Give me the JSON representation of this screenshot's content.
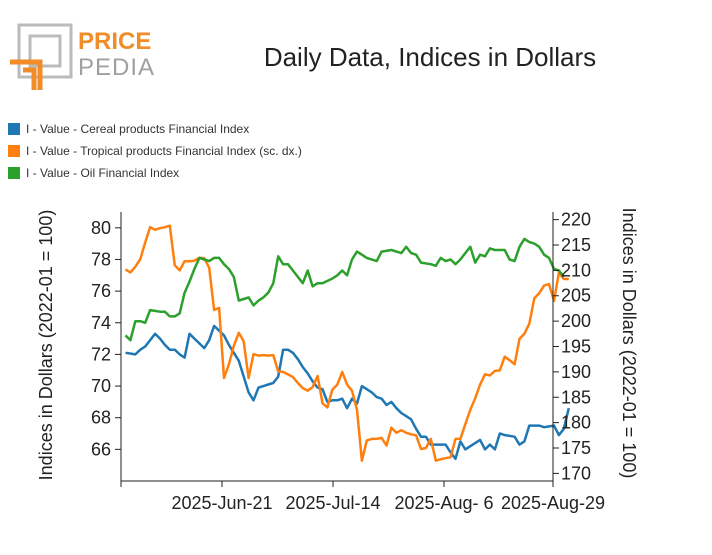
{
  "logo": {
    "line1": "PRICE",
    "line2": "PEDIA"
  },
  "legend": [
    {
      "label": "I - Value - Cereal products Financial Index",
      "color": "#1f77b4"
    },
    {
      "label": "I - Value - Tropical products Financial Index (sc. dx.)",
      "color": "#ff7f0e"
    },
    {
      "label": "I - Value - Oil Financial Index",
      "color": "#2ca02c"
    }
  ],
  "chart_data": {
    "type": "line",
    "title": "Daily Data, Indices in Dollars",
    "ylabel": "Indices in Dollars (2022-01 = 100)",
    "ylabel_right": "Indices in Dollars (2022-01 = 100)",
    "x_ticks": [
      "2025-Jun-21",
      "2025-Jul-14",
      "2025-Aug- 6",
      "2025-Aug-29"
    ],
    "y_left": {
      "min": 64,
      "max": 81,
      "ticks": [
        66,
        68,
        70,
        72,
        74,
        76,
        78,
        80
      ]
    },
    "y_right": {
      "min": 168.5,
      "max": 221.5,
      "ticks": [
        170,
        175,
        180,
        185,
        190,
        195,
        200,
        205,
        210,
        215,
        220
      ]
    },
    "x_start_date": "2025-05-30",
    "series": [
      {
        "name": "I - Value - Cereal products Financial Index",
        "axis": "left",
        "color": "#1f77b4",
        "points": [
          [
            "2025-05-30",
            72.1
          ],
          [
            "2025-06-01",
            72.0
          ],
          [
            "2025-06-02",
            72.3
          ],
          [
            "2025-06-03",
            72.5
          ],
          [
            "2025-06-05",
            73.3
          ],
          [
            "2025-06-06",
            73.0
          ],
          [
            "2025-06-07",
            72.6
          ],
          [
            "2025-06-08",
            72.3
          ],
          [
            "2025-06-09",
            72.3
          ],
          [
            "2025-06-10",
            72.0
          ],
          [
            "2025-06-11",
            71.8
          ],
          [
            "2025-06-12",
            73.3
          ],
          [
            "2025-06-13",
            73.0
          ],
          [
            "2025-06-15",
            72.4
          ],
          [
            "2025-06-16",
            72.9
          ],
          [
            "2025-06-17",
            73.8
          ],
          [
            "2025-06-18",
            73.5
          ],
          [
            "2025-06-19",
            73.2
          ],
          [
            "2025-06-20",
            72.6
          ],
          [
            "2025-06-21",
            72.1
          ],
          [
            "2025-06-22",
            71.6
          ],
          [
            "2025-06-23",
            70.6
          ],
          [
            "2025-06-24",
            69.6
          ],
          [
            "2025-06-25",
            69.1
          ],
          [
            "2025-06-26",
            69.9
          ],
          [
            "2025-06-27",
            70.0
          ],
          [
            "2025-06-28",
            70.1
          ],
          [
            "2025-06-29",
            70.2
          ],
          [
            "2025-06-30",
            70.6
          ],
          [
            "2025-07-01",
            72.3
          ],
          [
            "2025-07-02",
            72.3
          ],
          [
            "2025-07-03",
            72.1
          ],
          [
            "2025-07-04",
            71.7
          ],
          [
            "2025-07-05",
            71.2
          ],
          [
            "2025-07-06",
            70.8
          ],
          [
            "2025-07-07",
            70.3
          ],
          [
            "2025-07-08",
            69.9
          ],
          [
            "2025-07-09",
            69.8
          ],
          [
            "2025-07-10",
            69.0
          ],
          [
            "2025-07-11",
            69.1
          ],
          [
            "2025-07-12",
            69.1
          ],
          [
            "2025-07-13",
            69.2
          ],
          [
            "2025-07-14",
            68.6
          ],
          [
            "2025-07-15",
            69.2
          ],
          [
            "2025-07-16",
            68.9
          ],
          [
            "2025-07-17",
            70.0
          ],
          [
            "2025-07-18",
            69.8
          ],
          [
            "2025-07-19",
            69.6
          ],
          [
            "2025-07-20",
            69.3
          ],
          [
            "2025-07-21",
            69.2
          ],
          [
            "2025-07-22",
            68.8
          ],
          [
            "2025-07-23",
            69.0
          ],
          [
            "2025-07-24",
            68.6
          ],
          [
            "2025-07-25",
            68.3
          ],
          [
            "2025-07-27",
            67.9
          ],
          [
            "2025-07-28",
            67.3
          ],
          [
            "2025-07-29",
            66.8
          ],
          [
            "2025-07-30",
            66.8
          ],
          [
            "2025-07-31",
            66.3
          ],
          [
            "2025-08-01",
            66.3
          ],
          [
            "2025-08-02",
            66.3
          ],
          [
            "2025-08-03",
            66.3
          ],
          [
            "2025-08-04",
            65.8
          ],
          [
            "2025-08-05",
            65.4
          ],
          [
            "2025-08-06",
            66.5
          ],
          [
            "2025-08-07",
            66.0
          ],
          [
            "2025-08-08",
            66.2
          ],
          [
            "2025-08-10",
            66.6
          ],
          [
            "2025-08-11",
            66.0
          ],
          [
            "2025-08-12",
            66.3
          ],
          [
            "2025-08-13",
            66.0
          ],
          [
            "2025-08-14",
            67.0
          ],
          [
            "2025-08-15",
            66.9
          ],
          [
            "2025-08-17",
            66.8
          ],
          [
            "2025-08-18",
            66.3
          ],
          [
            "2025-08-19",
            66.5
          ],
          [
            "2025-08-20",
            67.5
          ],
          [
            "2025-08-22",
            67.5
          ],
          [
            "2025-08-23",
            67.4
          ],
          [
            "2025-08-25",
            67.5
          ],
          [
            "2025-08-26",
            66.9
          ],
          [
            "2025-08-27",
            67.3
          ],
          [
            "2025-08-28",
            68.6
          ]
        ]
      },
      {
        "name": "I - Value - Tropical products Financial Index (sc. dx.)",
        "axis": "right",
        "color": "#ff7f0e",
        "points": [
          [
            "2025-05-30",
            210.2
          ],
          [
            "2025-05-31",
            209.6
          ],
          [
            "2025-06-01",
            210.7
          ],
          [
            "2025-06-02",
            212.2
          ],
          [
            "2025-06-03",
            215.5
          ],
          [
            "2025-06-04",
            218.5
          ],
          [
            "2025-06-05",
            218.0
          ],
          [
            "2025-06-06",
            218.3
          ],
          [
            "2025-06-07",
            218.5
          ],
          [
            "2025-06-08",
            218.8
          ],
          [
            "2025-06-09",
            211.0
          ],
          [
            "2025-06-10",
            210.0
          ],
          [
            "2025-06-11",
            211.8
          ],
          [
            "2025-06-12",
            211.8
          ],
          [
            "2025-06-13",
            211.9
          ],
          [
            "2025-06-14",
            212.5
          ],
          [
            "2025-06-15",
            212.4
          ],
          [
            "2025-06-16",
            210.5
          ],
          [
            "2025-06-17",
            202.2
          ],
          [
            "2025-06-18",
            202.6
          ],
          [
            "2025-06-19",
            188.8
          ],
          [
            "2025-06-20",
            191.5
          ],
          [
            "2025-06-21",
            195.1
          ],
          [
            "2025-06-22",
            197.7
          ],
          [
            "2025-06-23",
            196.0
          ],
          [
            "2025-06-24",
            188.8
          ],
          [
            "2025-06-25",
            193.5
          ],
          [
            "2025-06-26",
            193.2
          ],
          [
            "2025-06-27",
            193.3
          ],
          [
            "2025-06-28",
            193.2
          ],
          [
            "2025-06-29",
            193.3
          ],
          [
            "2025-06-30",
            190.1
          ],
          [
            "2025-07-01",
            190.0
          ],
          [
            "2025-07-02",
            189.5
          ],
          [
            "2025-07-03",
            189.0
          ],
          [
            "2025-07-04",
            187.8
          ],
          [
            "2025-07-05",
            186.8
          ],
          [
            "2025-07-06",
            186.3
          ],
          [
            "2025-07-07",
            187.0
          ],
          [
            "2025-07-08",
            189.2
          ],
          [
            "2025-07-09",
            183.8
          ],
          [
            "2025-07-10",
            183.0
          ],
          [
            "2025-07-11",
            186.5
          ],
          [
            "2025-07-12",
            187.5
          ],
          [
            "2025-07-13",
            190.0
          ],
          [
            "2025-07-14",
            187.5
          ],
          [
            "2025-07-15",
            186.3
          ],
          [
            "2025-07-16",
            182.5
          ],
          [
            "2025-07-17",
            172.5
          ],
          [
            "2025-07-18",
            176.5
          ],
          [
            "2025-07-19",
            176.8
          ],
          [
            "2025-07-20",
            176.8
          ],
          [
            "2025-07-21",
            177.0
          ],
          [
            "2025-07-22",
            175.5
          ],
          [
            "2025-07-23",
            179.0
          ],
          [
            "2025-07-24",
            178.0
          ],
          [
            "2025-07-25",
            178.5
          ],
          [
            "2025-07-26",
            178.0
          ],
          [
            "2025-07-27",
            177.7
          ],
          [
            "2025-07-28",
            177.5
          ],
          [
            "2025-07-29",
            174.8
          ],
          [
            "2025-07-30",
            175.0
          ],
          [
            "2025-07-31",
            176.8
          ],
          [
            "2025-08-01",
            172.5
          ],
          [
            "2025-08-02",
            172.8
          ],
          [
            "2025-08-03",
            173.0
          ],
          [
            "2025-08-04",
            173.2
          ],
          [
            "2025-08-05",
            176.8
          ],
          [
            "2025-08-06",
            176.8
          ],
          [
            "2025-08-07",
            179.7
          ],
          [
            "2025-08-08",
            182.5
          ],
          [
            "2025-08-09",
            184.8
          ],
          [
            "2025-08-10",
            187.5
          ],
          [
            "2025-08-11",
            189.5
          ],
          [
            "2025-08-12",
            189.3
          ],
          [
            "2025-08-13",
            190.2
          ],
          [
            "2025-08-14",
            190.3
          ],
          [
            "2025-08-15",
            193.0
          ],
          [
            "2025-08-16",
            192.3
          ],
          [
            "2025-08-17",
            191.5
          ],
          [
            "2025-08-18",
            196.5
          ],
          [
            "2025-08-19",
            197.5
          ],
          [
            "2025-08-20",
            199.5
          ],
          [
            "2025-08-21",
            204.5
          ],
          [
            "2025-08-22",
            205.5
          ],
          [
            "2025-08-23",
            207.0
          ],
          [
            "2025-08-24",
            207.3
          ],
          [
            "2025-08-25",
            204.0
          ],
          [
            "2025-08-26",
            209.5
          ],
          [
            "2025-08-27",
            208.3
          ],
          [
            "2025-08-28",
            208.3
          ]
        ]
      },
      {
        "name": "I - Value - Oil Financial Index",
        "axis": "left",
        "color": "#2ca02c",
        "points": [
          [
            "2025-05-30",
            73.2
          ],
          [
            "2025-05-31",
            72.9
          ],
          [
            "2025-06-01",
            74.1
          ],
          [
            "2025-06-02",
            74.1
          ],
          [
            "2025-06-03",
            74.0
          ],
          [
            "2025-06-04",
            74.8
          ],
          [
            "2025-06-06",
            74.7
          ],
          [
            "2025-06-07",
            74.7
          ],
          [
            "2025-06-08",
            74.4
          ],
          [
            "2025-06-09",
            74.4
          ],
          [
            "2025-06-10",
            74.6
          ],
          [
            "2025-06-11",
            75.9
          ],
          [
            "2025-06-12",
            76.6
          ],
          [
            "2025-06-13",
            77.4
          ],
          [
            "2025-06-14",
            78.1
          ],
          [
            "2025-06-15",
            78.0
          ],
          [
            "2025-06-16",
            77.9
          ],
          [
            "2025-06-17",
            78.1
          ],
          [
            "2025-06-18",
            78.1
          ],
          [
            "2025-06-19",
            77.7
          ],
          [
            "2025-06-20",
            77.4
          ],
          [
            "2025-06-21",
            76.9
          ],
          [
            "2025-06-22",
            75.4
          ],
          [
            "2025-06-23",
            75.5
          ],
          [
            "2025-06-24",
            75.6
          ],
          [
            "2025-06-25",
            75.1
          ],
          [
            "2025-06-26",
            75.4
          ],
          [
            "2025-06-27",
            75.6
          ],
          [
            "2025-06-28",
            75.9
          ],
          [
            "2025-06-29",
            76.5
          ],
          [
            "2025-06-30",
            78.2
          ],
          [
            "2025-07-01",
            77.7
          ],
          [
            "2025-07-02",
            77.7
          ],
          [
            "2025-07-03",
            77.3
          ],
          [
            "2025-07-04",
            76.9
          ],
          [
            "2025-07-05",
            76.5
          ],
          [
            "2025-07-06",
            77.3
          ],
          [
            "2025-07-07",
            76.3
          ],
          [
            "2025-07-08",
            76.5
          ],
          [
            "2025-07-09",
            76.5
          ],
          [
            "2025-07-11",
            76.8
          ],
          [
            "2025-07-12",
            77.0
          ],
          [
            "2025-07-13",
            77.3
          ],
          [
            "2025-07-14",
            77.0
          ],
          [
            "2025-07-15",
            78.0
          ],
          [
            "2025-07-16",
            78.5
          ],
          [
            "2025-07-17",
            78.3
          ],
          [
            "2025-07-18",
            78.1
          ],
          [
            "2025-07-20",
            77.9
          ],
          [
            "2025-07-21",
            78.5
          ],
          [
            "2025-07-23",
            78.6
          ],
          [
            "2025-07-24",
            78.5
          ],
          [
            "2025-07-25",
            78.4
          ],
          [
            "2025-07-26",
            78.8
          ],
          [
            "2025-07-27",
            78.4
          ],
          [
            "2025-07-28",
            78.3
          ],
          [
            "2025-07-29",
            77.8
          ],
          [
            "2025-07-31",
            77.7
          ],
          [
            "2025-08-01",
            77.6
          ],
          [
            "2025-08-02",
            78.1
          ],
          [
            "2025-08-03",
            77.9
          ],
          [
            "2025-08-04",
            78.0
          ],
          [
            "2025-08-05",
            77.7
          ],
          [
            "2025-08-06",
            78.0
          ],
          [
            "2025-08-07",
            78.4
          ],
          [
            "2025-08-08",
            78.8
          ],
          [
            "2025-08-09",
            77.8
          ],
          [
            "2025-08-10",
            78.3
          ],
          [
            "2025-08-11",
            78.2
          ],
          [
            "2025-08-12",
            78.7
          ],
          [
            "2025-08-13",
            78.6
          ],
          [
            "2025-08-14",
            78.6
          ],
          [
            "2025-08-15",
            78.6
          ],
          [
            "2025-08-16",
            78.0
          ],
          [
            "2025-08-17",
            77.9
          ],
          [
            "2025-08-18",
            78.8
          ],
          [
            "2025-08-19",
            79.3
          ],
          [
            "2025-08-20",
            79.1
          ],
          [
            "2025-08-21",
            79.0
          ],
          [
            "2025-08-22",
            78.8
          ],
          [
            "2025-08-23",
            78.3
          ],
          [
            "2025-08-24",
            78.1
          ],
          [
            "2025-08-25",
            77.4
          ],
          [
            "2025-08-26",
            77.3
          ],
          [
            "2025-08-27",
            76.9
          ]
        ]
      }
    ]
  }
}
